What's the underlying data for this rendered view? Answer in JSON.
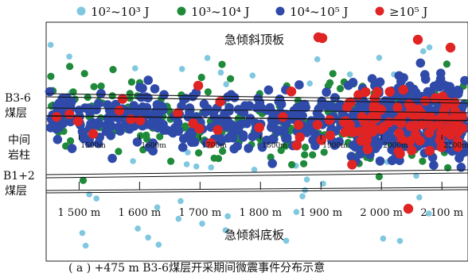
{
  "chart_data": {
    "type": "scatter",
    "caption": "( a ) +475 m B3-6煤层开采期间微震事件分布示意",
    "legend": {
      "placement": "top",
      "entries": [
        {
          "label": "10²~10³ J",
          "color": "#7fc8e0"
        },
        {
          "label": "10³~10⁴ J",
          "color": "#1e8a3a"
        },
        {
          "label": "10⁴~10⁵ J",
          "color": "#2f4aa8"
        },
        {
          "label": "≥10⁵ J",
          "color": "#e02424"
        }
      ]
    },
    "region_labels": {
      "roof": "急倾斜顶板",
      "floor": "急倾斜底板",
      "seam_upper_a": "B3-6",
      "seam_upper_b": "煤层",
      "pillar_a": "中间",
      "pillar_b": "岩柱",
      "seam_lower_a": "B1+2",
      "seam_lower_b": "煤层"
    },
    "x_axis": {
      "unit": "m",
      "range": [
        1460,
        2130
      ],
      "bottom_ticks": [
        {
          "value": 1500,
          "label": "1 500 m"
        },
        {
          "value": 1600,
          "label": "1 600 m"
        },
        {
          "value": 1700,
          "label": "1 700 m"
        },
        {
          "value": 1800,
          "label": "1 800 m"
        },
        {
          "value": 1900,
          "label": "1 900 m"
        },
        {
          "value": 2000,
          "label": "2 000 m"
        },
        {
          "value": 2100,
          "label": "2 100 m"
        }
      ],
      "middle_ticks": [
        {
          "value": 1500,
          "label": "1500m"
        },
        {
          "value": 1600,
          "label": "1600m"
        },
        {
          "value": 1700,
          "label": "1700m"
        },
        {
          "value": 1800,
          "label": "1800m"
        },
        {
          "value": 1900,
          "label": "1900m"
        },
        {
          "value": 2000,
          "label": "2000m"
        },
        {
          "value": 2100,
          "label": "2100m"
        }
      ]
    },
    "point_counts": {
      "cyan": 60,
      "green": 260,
      "blue": 720,
      "red": 130
    }
  }
}
